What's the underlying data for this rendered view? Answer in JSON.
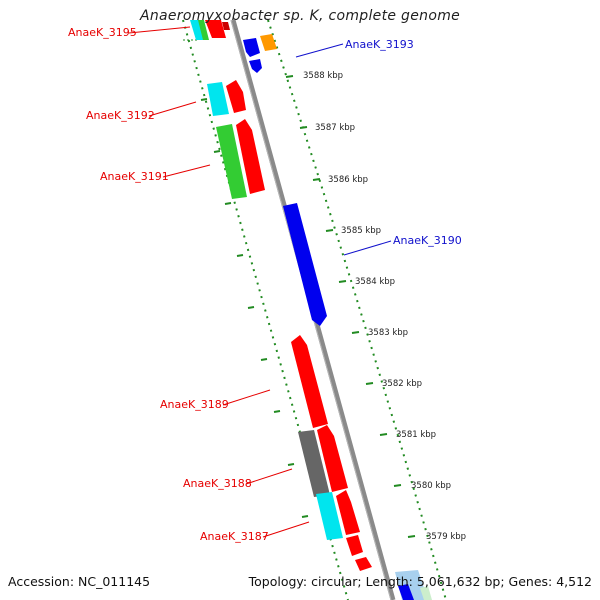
{
  "title": "Anaeromyxobacter sp. K, complete genome",
  "accession": "Accession: NC_011145",
  "summary": "Topology: circular; Length: 5,061,632 bp; Genes: 4,512",
  "colors": {
    "red": "#ff0000",
    "blue": "#0000ee",
    "cyan": "#00e5ee",
    "green": "#33cc33",
    "gray": "#666666",
    "orange": "#ff9900",
    "backbone": "#8a8a8a",
    "dotted": "#228b22",
    "label_red": "#e60000",
    "label_blue": "#1111cc"
  },
  "gene_labels": [
    {
      "name": "AnaeK_3195",
      "color": "red"
    },
    {
      "name": "AnaeK_3193",
      "color": "blue"
    },
    {
      "name": "AnaeK_3192",
      "color": "red"
    },
    {
      "name": "AnaeK_3191",
      "color": "red"
    },
    {
      "name": "AnaeK_3190",
      "color": "blue"
    },
    {
      "name": "AnaeK_3189",
      "color": "red"
    },
    {
      "name": "AnaeK_3188",
      "color": "red"
    },
    {
      "name": "AnaeK_3187",
      "color": "red"
    }
  ],
  "scale_labels": [
    "3588 kbp",
    "3587 kbp",
    "3586 kbp",
    "3585 kbp",
    "3584 kbp",
    "3583 kbp",
    "3582 kbp",
    "3581 kbp",
    "3580 kbp",
    "3579 kbp"
  ]
}
